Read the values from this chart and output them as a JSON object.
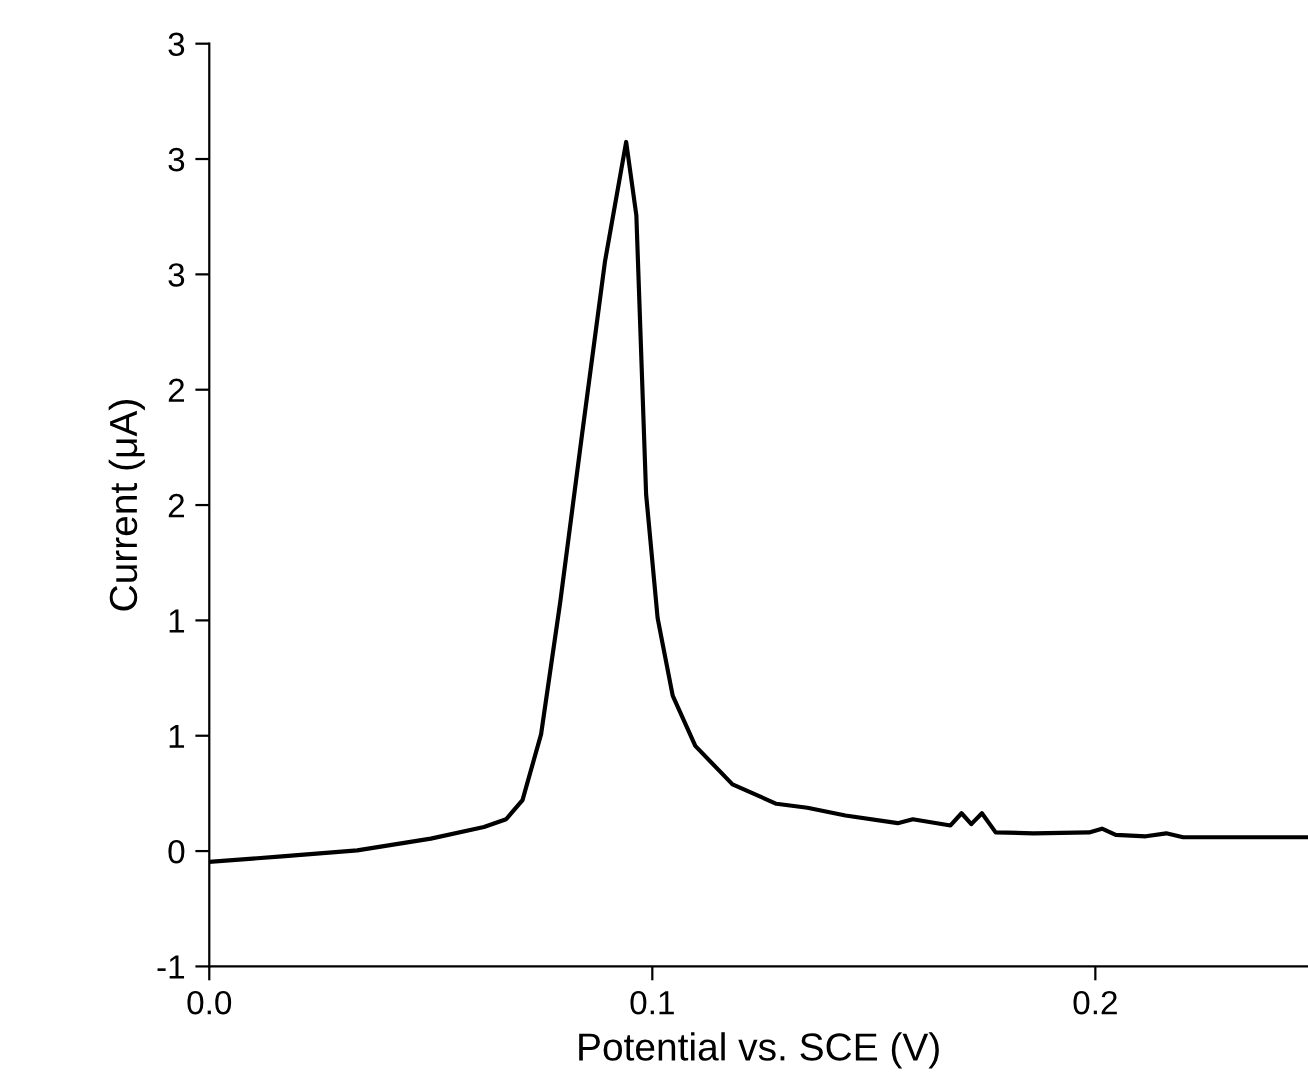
{
  "chart_data": {
    "type": "line",
    "xlabel": "Potential vs. SCE (V)",
    "ylabel": "Current (μA)",
    "x": [
      0,
      0.0164,
      0.0334,
      0.05,
      0.062,
      0.067,
      0.0707,
      0.0749,
      0.0792,
      0.0842,
      0.0893,
      0.0941,
      0.0964,
      0.0986,
      0.1012,
      0.1046,
      0.1097,
      0.1181,
      0.128,
      0.135,
      0.1436,
      0.1554,
      0.1588,
      0.1673,
      0.1698,
      0.172,
      0.1744,
      0.1775,
      0.186,
      0.1986,
      0.2015,
      0.2046,
      0.2114,
      0.216,
      0.2198,
      0.248
    ],
    "series": [
      {
        "color": "#000000",
        "values": [
          -0.047,
          -0.023,
          0.003,
          0.054,
          0.104,
          0.138,
          0.221,
          0.507,
          1.077,
          1.815,
          2.554,
          3.074,
          2.755,
          1.547,
          1.01,
          0.674,
          0.456,
          0.289,
          0.205,
          0.188,
          0.154,
          0.121,
          0.138,
          0.111,
          0.164,
          0.117,
          0.164,
          0.081,
          0.077,
          0.081,
          0.097,
          0.07,
          0.064,
          0.077,
          0.06,
          0.06
        ]
      }
    ],
    "xlim": [
      0,
      0.248
    ],
    "xticks": [
      {
        "value": 0,
        "label": "0.0"
      },
      0.1,
      0.2
    ],
    "ylim": [
      -0.5,
      3.5
    ],
    "yticks": [
      {
        "value": -0.5,
        "label": "-1"
      },
      {
        "value": 0,
        "label": "0"
      },
      {
        "value": 0.5,
        "label": "1"
      },
      {
        "value": 1,
        "label": "1"
      },
      {
        "value": 1.5,
        "label": "2"
      },
      {
        "value": 2,
        "label": "2"
      },
      {
        "value": 2.5,
        "label": "3"
      },
      {
        "value": 3,
        "label": "3"
      },
      {
        "value": 3.5,
        "label": "3"
      }
    ],
    "grid": false,
    "legend": false,
    "marker": "none",
    "line_style": "solid"
  }
}
